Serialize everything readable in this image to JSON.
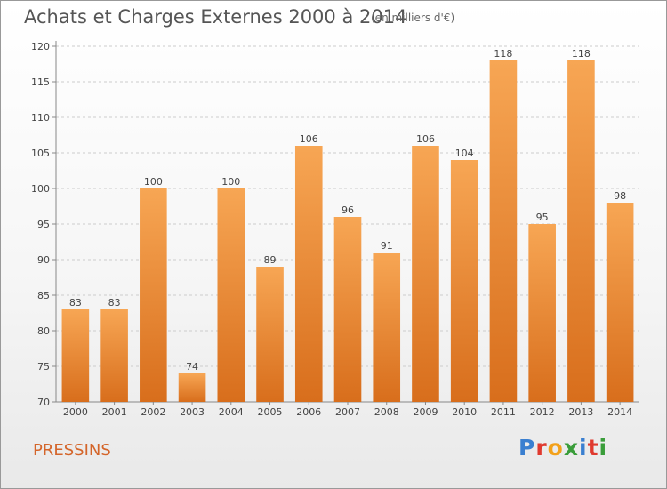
{
  "header": {
    "title": "Achats et Charges Externes 2000 à 2014",
    "subtitle": "(en milliers d'€)"
  },
  "footer": {
    "commune": "PRESSINS",
    "logo_text": "Proxiti",
    "logo_colors": [
      "#3a7fd0",
      "#e03a2f",
      "#f3a11a",
      "#3a9d3a",
      "#3a7fd0",
      "#e03a2f",
      "#3a9d3a"
    ]
  },
  "chart_data": {
    "type": "bar",
    "title": "Achats et Charges Externes 2000 à 2014",
    "subtitle": "(en milliers d'€)",
    "categories": [
      "2000",
      "2001",
      "2002",
      "2003",
      "2004",
      "2005",
      "2006",
      "2007",
      "2008",
      "2009",
      "2010",
      "2011",
      "2012",
      "2013",
      "2014"
    ],
    "values": [
      83,
      83,
      100,
      74,
      100,
      89,
      106,
      96,
      91,
      106,
      104,
      118,
      95,
      118,
      98
    ],
    "ylim": [
      70,
      120
    ],
    "yticks": [
      70,
      75,
      80,
      85,
      90,
      95,
      100,
      105,
      110,
      115,
      120
    ],
    "grid": true,
    "bar_color_top": "#f7a654",
    "bar_color_bottom": "#d86e1c"
  }
}
